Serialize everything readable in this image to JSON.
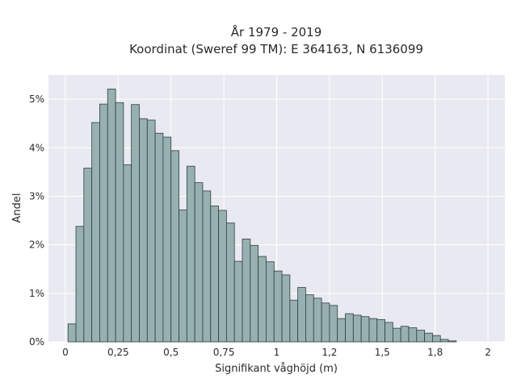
{
  "chart_data": {
    "type": "bar",
    "title_lines": [
      "År 1979 - 2019",
      "Koordinat (Sweref 99 TM): E 364163, N 6136099"
    ],
    "xlabel": "Signifikant våghöjd (m)",
    "ylabel": "Andel",
    "xlim": [
      -0.08,
      2.08
    ],
    "ylim": [
      0,
      5.5
    ],
    "x_ticks": [
      {
        "value": 0,
        "label": "0"
      },
      {
        "value": 0.25,
        "label": "0,25"
      },
      {
        "value": 0.5,
        "label": "0,5"
      },
      {
        "value": 0.75,
        "label": "0,75"
      },
      {
        "value": 1,
        "label": "1"
      },
      {
        "value": 1.25,
        "label": "1,2"
      },
      {
        "value": 1.5,
        "label": "1,5"
      },
      {
        "value": 1.75,
        "label": "1,8"
      },
      {
        "value": 2,
        "label": "2"
      }
    ],
    "y_ticks": [
      {
        "value": 0,
        "label": "0%"
      },
      {
        "value": 1,
        "label": "1%"
      },
      {
        "value": 2,
        "label": "2%"
      },
      {
        "value": 3,
        "label": "3%"
      },
      {
        "value": 4,
        "label": "4%"
      },
      {
        "value": 5,
        "label": "5%"
      }
    ],
    "bin_start": 0.0125,
    "bin_width": 0.0375,
    "values": [
      0.37,
      2.38,
      3.58,
      4.52,
      4.9,
      5.21,
      4.93,
      3.65,
      4.89,
      4.6,
      4.57,
      4.3,
      4.22,
      3.94,
      2.72,
      3.62,
      3.28,
      3.11,
      2.8,
      2.71,
      2.45,
      1.66,
      2.12,
      1.99,
      1.76,
      1.65,
      1.46,
      1.38,
      0.86,
      1.12,
      0.97,
      0.9,
      0.8,
      0.75,
      0.48,
      0.58,
      0.55,
      0.52,
      0.48,
      0.46,
      0.4,
      0.28,
      0.32,
      0.29,
      0.24,
      0.18,
      0.13,
      0.05,
      0.02
    ],
    "bar_fill": "#97b1b0",
    "bar_edge": "#2f3f3f",
    "plot_background": "#e9e9f1",
    "grid": true,
    "grid_color": "#ffffff"
  }
}
